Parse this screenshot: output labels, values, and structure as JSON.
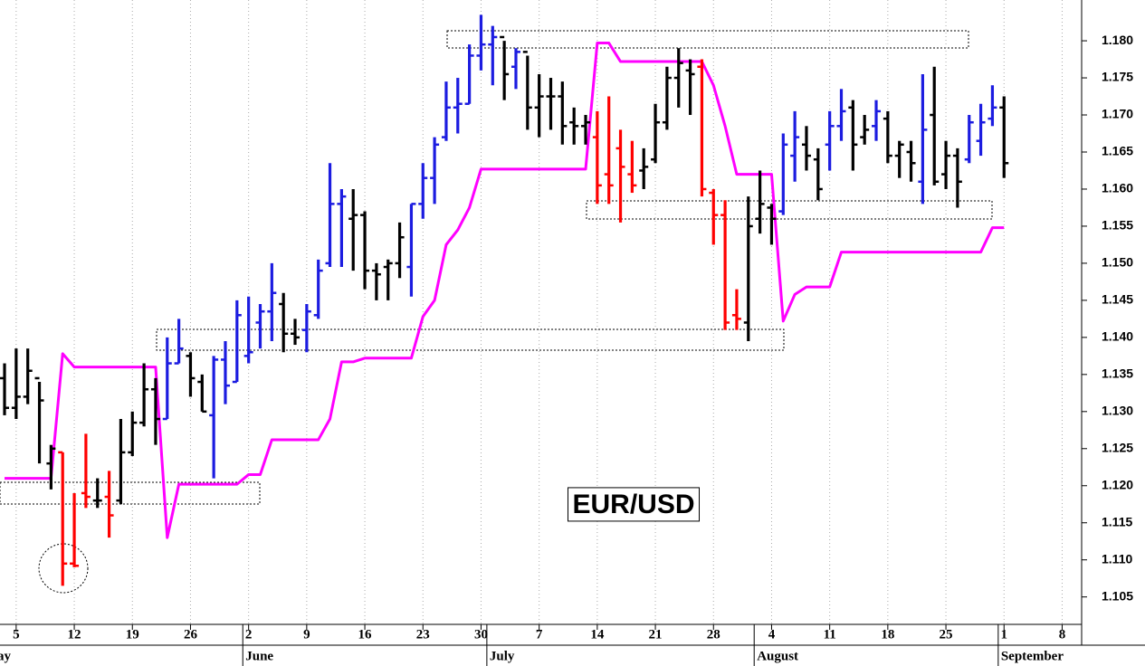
{
  "chart_data": {
    "type": "ohlc",
    "title": "EUR/USD",
    "categories": [
      null,
      "5",
      null,
      null,
      null,
      null,
      "12",
      null,
      null,
      null,
      null,
      "19",
      null,
      null,
      null,
      null,
      "26",
      null,
      null,
      null,
      null,
      "2",
      null,
      null,
      null,
      null,
      "9",
      null,
      null,
      null,
      null,
      "16",
      null,
      null,
      null,
      null,
      "23",
      null,
      null,
      null,
      null,
      "30",
      null,
      null,
      null,
      null,
      "7",
      null,
      null,
      null,
      null,
      "14",
      null,
      null,
      null,
      null,
      "21",
      null,
      null,
      null,
      null,
      "28",
      null,
      null,
      null,
      null,
      "4",
      null,
      null,
      null,
      null,
      "11",
      null,
      null,
      null,
      null,
      "18",
      null,
      null,
      null,
      null,
      "25",
      null,
      null,
      null,
      null,
      "1",
      null,
      null,
      null,
      null,
      "8",
      null
    ],
    "months": [
      "ay",
      null,
      null,
      null,
      null,
      null,
      null,
      null,
      null,
      null,
      null,
      null,
      null,
      null,
      null,
      null,
      null,
      null,
      null,
      null,
      null,
      "June",
      null,
      null,
      null,
      null,
      null,
      null,
      null,
      null,
      null,
      null,
      null,
      null,
      null,
      null,
      null,
      null,
      null,
      null,
      null,
      null,
      "July",
      null,
      null,
      null,
      null,
      null,
      null,
      null,
      null,
      null,
      null,
      null,
      null,
      null,
      null,
      null,
      null,
      null,
      null,
      null,
      null,
      null,
      null,
      "August",
      null,
      null,
      null,
      null,
      null,
      null,
      null,
      null,
      null,
      null,
      null,
      null,
      null,
      null,
      null,
      null,
      null,
      null,
      null,
      null,
      "September",
      null,
      null,
      null,
      null,
      null,
      null
    ],
    "ohlc": {
      "open": [
        1.1345,
        1.1305,
        1.132,
        1.1345,
        1.123,
        1.1245,
        1.1095,
        1.119,
        1.118,
        1.1185,
        1.118,
        1.1245,
        1.1285,
        1.133,
        1.129,
        1.1365,
        1.1375,
        1.134,
        1.1295,
        1.137,
        1.134,
        1.1375,
        1.142,
        1.1435,
        1.1445,
        1.1405,
        1.141,
        1.143,
        1.15,
        1.158,
        1.156,
        1.1565,
        1.149,
        1.1495,
        1.15,
        1.1495,
        1.158,
        1.1615,
        1.167,
        1.171,
        1.1715,
        1.178,
        1.1795,
        1.1805,
        1.1765,
        1.1785,
        1.171,
        1.1725,
        1.1725,
        1.169,
        1.1685,
        1.167,
        1.162,
        1.1655,
        1.162,
        1.1625,
        1.164,
        1.169,
        1.175,
        1.176,
        1.1765,
        1.1595,
        1.1565,
        1.143,
        1.142,
        1.156,
        1.1575,
        1.157,
        1.1645,
        1.166,
        1.164,
        1.166,
        1.1685,
        1.171,
        1.167,
        1.1685,
        1.1695,
        1.1645,
        1.165,
        1.161,
        1.17,
        1.162,
        1.1645,
        1.164,
        1.1665,
        1.1695,
        1.171
      ],
      "high": [
        1.1365,
        1.1385,
        1.1385,
        1.134,
        1.1255,
        1.1245,
        1.119,
        1.127,
        1.121,
        1.122,
        1.129,
        1.13,
        1.1365,
        1.1345,
        1.14,
        1.1425,
        1.138,
        1.135,
        1.1375,
        1.1395,
        1.145,
        1.1455,
        1.1445,
        1.15,
        1.146,
        1.1425,
        1.1445,
        1.1505,
        1.1635,
        1.16,
        1.16,
        1.157,
        1.15,
        1.1505,
        1.1555,
        1.158,
        1.1635,
        1.167,
        1.1745,
        1.175,
        1.1795,
        1.1835,
        1.182,
        1.18,
        1.179,
        1.178,
        1.1755,
        1.175,
        1.1745,
        1.171,
        1.17,
        1.1705,
        1.1725,
        1.168,
        1.1665,
        1.1655,
        1.1715,
        1.1765,
        1.179,
        1.1775,
        1.1775,
        1.16,
        1.1585,
        1.1465,
        1.159,
        1.1625,
        1.158,
        1.1675,
        1.1705,
        1.1685,
        1.1655,
        1.1705,
        1.1735,
        1.172,
        1.17,
        1.172,
        1.1705,
        1.1665,
        1.1665,
        1.1755,
        1.1765,
        1.1665,
        1.1655,
        1.17,
        1.1715,
        1.174,
        1.1725
      ],
      "low": [
        1.1295,
        1.129,
        1.131,
        1.123,
        1.1195,
        1.1065,
        1.109,
        1.117,
        1.117,
        1.113,
        1.1175,
        1.124,
        1.128,
        1.1255,
        1.129,
        1.1365,
        1.132,
        1.13,
        1.121,
        1.131,
        1.134,
        1.1365,
        1.1385,
        1.1395,
        1.138,
        1.139,
        1.138,
        1.1425,
        1.1495,
        1.1495,
        1.149,
        1.1465,
        1.145,
        1.145,
        1.148,
        1.1455,
        1.156,
        1.158,
        1.1665,
        1.1675,
        1.1715,
        1.176,
        1.174,
        1.172,
        1.1735,
        1.168,
        1.167,
        1.168,
        1.166,
        1.166,
        1.166,
        1.158,
        1.158,
        1.1555,
        1.1595,
        1.16,
        1.1635,
        1.168,
        1.171,
        1.17,
        1.159,
        1.1525,
        1.141,
        1.141,
        1.1395,
        1.154,
        1.1525,
        1.1565,
        1.161,
        1.1625,
        1.1585,
        1.1625,
        1.1665,
        1.1625,
        1.166,
        1.1665,
        1.1635,
        1.1615,
        1.161,
        1.158,
        1.1605,
        1.16,
        1.1575,
        1.1635,
        1.1645,
        1.1685,
        1.1615
      ],
      "close": [
        1.1305,
        1.132,
        1.1355,
        1.1315,
        1.125,
        1.1095,
        1.1092,
        1.1185,
        1.118,
        1.116,
        1.1245,
        1.1285,
        1.133,
        1.129,
        1.1365,
        1.1385,
        1.1345,
        1.13,
        1.137,
        1.1335,
        1.143,
        1.138,
        1.1435,
        1.146,
        1.1405,
        1.14,
        1.1435,
        1.149,
        1.158,
        1.159,
        1.1565,
        1.149,
        1.1485,
        1.15,
        1.1535,
        1.158,
        1.1615,
        1.166,
        1.171,
        1.1715,
        1.178,
        1.1795,
        1.1805,
        1.1755,
        1.1785,
        1.171,
        1.1725,
        1.1725,
        1.1685,
        1.1685,
        1.169,
        1.1605,
        1.1605,
        1.163,
        1.1605,
        1.163,
        1.169,
        1.175,
        1.177,
        1.1755,
        1.16,
        1.1565,
        1.142,
        1.1425,
        1.155,
        1.158,
        1.156,
        1.166,
        1.167,
        1.1645,
        1.16,
        1.1685,
        1.1705,
        1.166,
        1.168,
        1.1705,
        1.1645,
        1.166,
        1.1635,
        1.168,
        1.161,
        1.1645,
        1.161,
        1.169,
        1.169,
        1.171,
        1.1635
      ],
      "colors": [
        "#000000",
        "#000000",
        "#000000",
        "#000000",
        "#000000",
        "#ff0000",
        "#ff0000",
        "#ff0000",
        "#000000",
        "#ff0000",
        "#000000",
        "#000000",
        "#000000",
        "#000000",
        "#1c1ce0",
        "#1c1ce0",
        "#000000",
        "#000000",
        "#1c1ce0",
        "#1c1ce0",
        "#1c1ce0",
        "#1c1ce0",
        "#1c1ce0",
        "#1c1ce0",
        "#000000",
        "#000000",
        "#1c1ce0",
        "#1c1ce0",
        "#1c1ce0",
        "#1c1ce0",
        "#000000",
        "#000000",
        "#000000",
        "#000000",
        "#000000",
        "#1c1ce0",
        "#1c1ce0",
        "#1c1ce0",
        "#1c1ce0",
        "#1c1ce0",
        "#1c1ce0",
        "#1c1ce0",
        "#1c1ce0",
        "#000000",
        "#1c1ce0",
        "#000000",
        "#000000",
        "#000000",
        "#000000",
        "#000000",
        "#000000",
        "#ff0000",
        "#ff0000",
        "#ff0000",
        "#ff0000",
        "#000000",
        "#000000",
        "#000000",
        "#000000",
        "#000000",
        "#ff0000",
        "#ff0000",
        "#ff0000",
        "#ff0000",
        "#000000",
        "#000000",
        "#000000",
        "#1c1ce0",
        "#1c1ce0",
        "#000000",
        "#000000",
        "#1c1ce0",
        "#1c1ce0",
        "#000000",
        "#000000",
        "#1c1ce0",
        "#000000",
        "#000000",
        "#000000",
        "#1c1ce0",
        "#000000",
        "#000000",
        "#000000",
        "#1c1ce0",
        "#1c1ce0",
        "#1c1ce0",
        "#000000"
      ]
    },
    "stop_line": {
      "color": "#ff00ff",
      "values": [
        1.121,
        1.121,
        1.121,
        1.121,
        1.121,
        1.1378,
        1.136,
        1.136,
        1.136,
        1.136,
        1.136,
        1.136,
        1.136,
        1.136,
        1.113,
        1.1202,
        1.1202,
        1.1202,
        1.1202,
        1.1202,
        1.1202,
        1.1215,
        1.1215,
        1.1262,
        1.1262,
        1.1262,
        1.1262,
        1.1262,
        1.129,
        1.1367,
        1.1367,
        1.1372,
        1.1372,
        1.1372,
        1.1372,
        1.1372,
        1.1428,
        1.145,
        1.1525,
        1.1545,
        1.1575,
        1.1627,
        1.1627,
        1.1627,
        1.1627,
        1.1627,
        1.1627,
        1.1627,
        1.1627,
        1.1627,
        1.1627,
        1.1797,
        1.1797,
        1.1772,
        1.1772,
        1.1772,
        1.1772,
        1.1772,
        1.1772,
        1.1772,
        1.1772,
        1.174,
        1.1685,
        1.162,
        1.162,
        1.162,
        1.162,
        1.1422,
        1.1458,
        1.1468,
        1.1468,
        1.1468,
        1.1515,
        1.1515,
        1.1515,
        1.1515,
        1.1515,
        1.1515,
        1.1515,
        1.1515,
        1.1515,
        1.1515,
        1.1515,
        1.1515,
        1.1515,
        1.1548,
        1.1548
      ]
    },
    "ylim": [
      1.1013,
      1.1855
    ],
    "yticks": [
      {
        "value": 1.105,
        "label": "1.105"
      },
      {
        "value": 1.11,
        "label": "1.110"
      },
      {
        "value": 1.115,
        "label": "1.115"
      },
      {
        "value": 1.12,
        "label": "1.120"
      },
      {
        "value": 1.125,
        "label": "1.125"
      },
      {
        "value": 1.13,
        "label": "1.130"
      },
      {
        "value": 1.135,
        "label": "1.135"
      },
      {
        "value": 1.14,
        "label": "1.140"
      },
      {
        "value": 1.145,
        "label": "1.145"
      },
      {
        "value": 1.15,
        "label": "1.150"
      },
      {
        "value": 1.155,
        "label": "1.155"
      },
      {
        "value": 1.16,
        "label": "1.160"
      },
      {
        "value": 1.165,
        "label": "1.165"
      },
      {
        "value": 1.17,
        "label": "1.170"
      },
      {
        "value": 1.175,
        "label": "1.175"
      },
      {
        "value": 1.18,
        "label": "1.180"
      }
    ],
    "grid": true
  }
}
